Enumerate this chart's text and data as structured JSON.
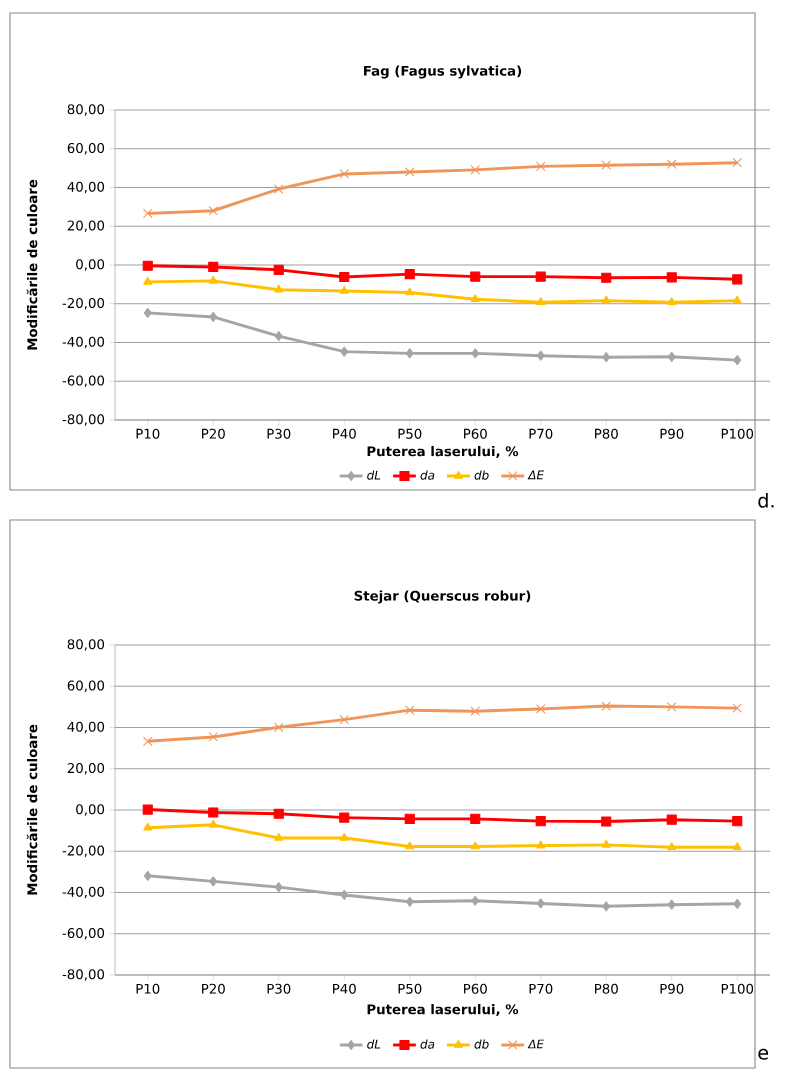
{
  "chart_data": [
    {
      "type": "line",
      "title": "Fag (Fagus sylvatica)",
      "xlabel": "Puterea laserului, %",
      "ylabel": "Modificările de culoare",
      "categories": [
        "P10",
        "P20",
        "P30",
        "P40",
        "P50",
        "P60",
        "P70",
        "P80",
        "P90",
        "P100"
      ],
      "ylim": [
        -80,
        80
      ],
      "yticks": [
        {
          "value": -80,
          "label": "-80,00"
        },
        {
          "value": -60,
          "label": "-60,00"
        },
        {
          "value": -40,
          "label": "-40,00"
        },
        {
          "value": -20,
          "label": "-20,00"
        },
        {
          "value": 0,
          "label": "0,00"
        },
        {
          "value": 20,
          "label": "20,00"
        },
        {
          "value": 40,
          "label": "40,00"
        },
        {
          "value": 60,
          "label": "60,00"
        },
        {
          "value": 80,
          "label": "80,00"
        }
      ],
      "grid": "y",
      "legend": "bottom",
      "series": [
        {
          "name": "dL",
          "color": "#a5a5a5",
          "marker": "diamond",
          "values": [
            -24.7,
            -26.8,
            -36.7,
            -44.7,
            -45.6,
            -45.6,
            -46.8,
            -47.6,
            -47.4,
            -49.1
          ]
        },
        {
          "name": "da",
          "color": "#ff0000",
          "marker": "square",
          "values": [
            -0.4,
            -1.0,
            -2.5,
            -6.2,
            -4.7,
            -6.0,
            -6.0,
            -6.6,
            -6.4,
            -7.4
          ]
        },
        {
          "name": "db",
          "color": "#ffc000",
          "marker": "triangle",
          "values": [
            -8.7,
            -8.2,
            -12.8,
            -13.4,
            -14.2,
            -17.7,
            -19.2,
            -18.4,
            -19.2,
            -18.4
          ]
        },
        {
          "name": "ΔE",
          "color": "#f0955a",
          "marker": "cross",
          "values": [
            26.6,
            28.0,
            39.2,
            47.0,
            48.0,
            49.1,
            50.9,
            51.5,
            52.0,
            52.8
          ]
        }
      ],
      "annotations": [
        "d."
      ]
    },
    {
      "type": "line",
      "title": "Stejar (Querscus robur)",
      "xlabel": "Puterea laserului, %",
      "ylabel": "Modificările de culoare",
      "categories": [
        "P10",
        "P20",
        "P30",
        "P40",
        "P50",
        "P60",
        "P70",
        "P80",
        "P90",
        "P100"
      ],
      "ylim": [
        -80,
        80
      ],
      "yticks": [
        {
          "value": -80,
          "label": "-80,00"
        },
        {
          "value": -60,
          "label": "-60,00"
        },
        {
          "value": -40,
          "label": "-40,00"
        },
        {
          "value": -20,
          "label": "-20,00"
        },
        {
          "value": 0,
          "label": "0,00"
        },
        {
          "value": 20,
          "label": "20,00"
        },
        {
          "value": 40,
          "label": "40,00"
        },
        {
          "value": 60,
          "label": "60,00"
        },
        {
          "value": 80,
          "label": "80,00"
        }
      ],
      "grid": "y",
      "legend": "bottom",
      "series": [
        {
          "name": "dL",
          "color": "#a5a5a5",
          "marker": "diamond",
          "values": [
            -31.9,
            -34.6,
            -37.4,
            -41.2,
            -44.5,
            -44.0,
            -45.3,
            -46.7,
            -45.9,
            -45.5
          ]
        },
        {
          "name": "da",
          "color": "#ff0000",
          "marker": "square",
          "values": [
            0.2,
            -1.2,
            -1.8,
            -3.7,
            -4.3,
            -4.3,
            -5.4,
            -5.6,
            -4.7,
            -5.4
          ]
        },
        {
          "name": "db",
          "color": "#ffc000",
          "marker": "triangle",
          "values": [
            -8.6,
            -7.2,
            -13.6,
            -13.6,
            -17.7,
            -17.7,
            -17.3,
            -16.9,
            -18.1,
            -18.1
          ]
        },
        {
          "name": "ΔE",
          "color": "#f0955a",
          "marker": "cross",
          "values": [
            33.3,
            35.4,
            40.1,
            43.8,
            48.4,
            47.9,
            49.0,
            50.4,
            50.0,
            49.4
          ]
        }
      ],
      "annotations": [
        "e"
      ]
    }
  ]
}
